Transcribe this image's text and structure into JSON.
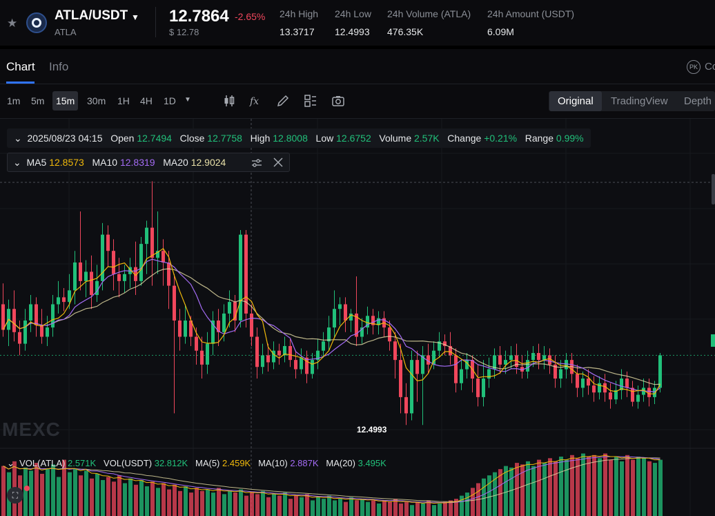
{
  "ticker": {
    "pair": "ATLA/USDT",
    "base": "ATLA",
    "price": "12.7864",
    "change_pct": "-2.65%",
    "price_usd": "$ 12.78",
    "stats": [
      {
        "label": "24h High",
        "value": "13.3717"
      },
      {
        "label": "24h Low",
        "value": "12.4993"
      },
      {
        "label": "24h Volume (ATLA)",
        "value": "476.35K"
      },
      {
        "label": "24h Amount (USDT)",
        "value": "6.09M"
      }
    ]
  },
  "tabs": {
    "chart": "Chart",
    "info": "Info",
    "pk_badge": "PK",
    "co_text": "Co"
  },
  "toolbar": {
    "timeframes": [
      "1m",
      "5m",
      "15m",
      "30m",
      "1H",
      "4H",
      "1D"
    ],
    "active_timeframe": "15m",
    "views": [
      "Original",
      "TradingView",
      "Depth"
    ],
    "active_view": "Original"
  },
  "ohlc": {
    "date": "2025/08/23 04:15",
    "open_label": "Open",
    "open": "12.7494",
    "close_label": "Close",
    "close": "12.7758",
    "high_label": "High",
    "high": "12.8008",
    "low_label": "Low",
    "low": "12.6752",
    "volume_label": "Volume",
    "volume": "2.57K",
    "change_label": "Change",
    "change": "+0.21%",
    "range_label": "Range",
    "range": "0.99%"
  },
  "ma": {
    "ma5_label": "MA5",
    "ma5": "12.8573",
    "ma10_label": "MA10",
    "ma10": "12.8319",
    "ma20_label": "MA20",
    "ma20": "12.9024"
  },
  "volume": {
    "vol_base_label": "VOL(ATLA)",
    "vol_base": "2.571K",
    "vol_quote_label": "VOL(USDT)",
    "vol_quote": "32.812K",
    "ma5_label": "MA(5)",
    "ma5": "2.459K",
    "ma10_label": "MA(10)",
    "ma10": "2.887K",
    "ma20_label": "MA(20)",
    "ma20": "3.495K"
  },
  "chart_low_label": "12.4993",
  "watermark": "MEXC",
  "colors": {
    "up": "#21c07a",
    "down": "#f0475c",
    "accent": "#2f74ff"
  },
  "chart_data": {
    "type": "candlestick",
    "candles": [
      [
        13.02,
        12.91,
        13.11,
        12.88
      ],
      [
        12.91,
        13.0,
        13.04,
        12.84
      ],
      [
        13.0,
        12.9,
        13.08,
        12.86
      ],
      [
        12.9,
        12.85,
        12.95,
        12.8
      ],
      [
        12.85,
        12.95,
        13.0,
        12.82
      ],
      [
        12.95,
        13.02,
        13.06,
        12.9
      ],
      [
        13.02,
        12.93,
        13.05,
        12.88
      ],
      [
        12.93,
        12.88,
        13.0,
        12.85
      ],
      [
        12.88,
        12.92,
        12.97,
        12.84
      ],
      [
        12.92,
        13.02,
        13.06,
        12.88
      ],
      [
        13.02,
        13.05,
        13.12,
        12.98
      ],
      [
        13.05,
        13.03,
        13.09,
        12.99
      ],
      [
        13.03,
        13.08,
        13.15,
        13.0
      ],
      [
        13.08,
        13.2,
        13.25,
        13.02
      ],
      [
        13.2,
        13.12,
        13.42,
        13.08
      ],
      [
        13.12,
        13.16,
        13.21,
        13.05
      ],
      [
        13.16,
        13.06,
        13.23,
        13.0
      ],
      [
        13.06,
        13.12,
        13.19,
        13.03
      ],
      [
        13.12,
        13.32,
        13.37,
        13.08
      ],
      [
        13.32,
        13.25,
        13.36,
        13.18
      ],
      [
        13.25,
        13.15,
        13.3,
        13.08
      ],
      [
        13.15,
        13.12,
        13.22,
        13.05
      ],
      [
        13.12,
        13.15,
        13.19,
        13.07
      ],
      [
        13.15,
        13.18,
        13.22,
        13.09
      ],
      [
        13.18,
        13.12,
        13.29,
        13.06
      ],
      [
        13.12,
        13.28,
        13.31,
        13.1
      ],
      [
        13.28,
        13.35,
        13.38,
        13.15
      ],
      [
        13.35,
        13.22,
        13.55,
        13.1
      ],
      [
        13.22,
        13.25,
        13.42,
        13.15
      ],
      [
        13.25,
        13.2,
        13.3,
        13.1
      ],
      [
        13.2,
        13.1,
        13.25,
        13.0
      ],
      [
        13.1,
        12.95,
        13.15,
        12.55
      ],
      [
        12.95,
        12.88,
        13.0,
        12.82
      ],
      [
        12.88,
        12.95,
        13.02,
        12.85
      ],
      [
        12.95,
        12.88,
        12.97,
        12.84
      ],
      [
        12.88,
        12.82,
        12.92,
        12.76
      ],
      [
        12.82,
        12.76,
        12.88,
        12.7
      ],
      [
        12.76,
        12.85,
        12.9,
        12.72
      ],
      [
        12.85,
        12.95,
        12.99,
        12.8
      ],
      [
        12.95,
        12.9,
        13.0,
        12.84
      ],
      [
        12.9,
        12.98,
        13.02,
        12.86
      ],
      [
        12.98,
        13.03,
        13.08,
        12.92
      ],
      [
        13.03,
        12.95,
        13.06,
        12.9
      ],
      [
        12.95,
        13.32,
        13.34,
        12.92
      ],
      [
        13.32,
        12.98,
        13.34,
        12.92
      ],
      [
        12.98,
        12.88,
        13.02,
        12.84
      ],
      [
        12.88,
        12.75,
        12.92,
        12.7
      ],
      [
        12.75,
        12.8,
        12.85,
        12.72
      ],
      [
        12.8,
        12.77,
        12.85,
        12.73
      ],
      [
        12.77,
        12.82,
        12.86,
        12.74
      ],
      [
        12.82,
        12.8,
        12.85,
        12.76
      ],
      [
        12.8,
        12.84,
        12.88,
        12.77
      ],
      [
        12.84,
        12.78,
        12.87,
        12.75
      ],
      [
        12.78,
        12.74,
        12.82,
        12.7
      ],
      [
        12.74,
        12.79,
        12.83,
        12.72
      ],
      [
        12.79,
        12.72,
        12.82,
        12.68
      ],
      [
        12.72,
        12.78,
        12.81,
        12.7
      ],
      [
        12.78,
        12.82,
        12.87,
        12.74
      ],
      [
        12.82,
        12.86,
        12.9,
        12.79
      ],
      [
        12.86,
        12.92,
        12.97,
        12.82
      ],
      [
        12.92,
        13.0,
        13.08,
        12.88
      ],
      [
        13.0,
        13.02,
        13.05,
        12.93
      ],
      [
        13.02,
        12.95,
        13.05,
        12.9
      ],
      [
        12.95,
        12.98,
        13.0,
        12.9
      ],
      [
        12.98,
        12.88,
        13.14,
        12.84
      ],
      [
        12.88,
        12.92,
        12.96,
        12.85
      ],
      [
        12.92,
        12.97,
        13.01,
        12.89
      ],
      [
        12.97,
        12.93,
        13.0,
        12.89
      ],
      [
        12.93,
        12.96,
        12.99,
        12.89
      ],
      [
        12.96,
        12.92,
        12.99,
        12.88
      ],
      [
        12.92,
        12.86,
        12.95,
        12.82
      ],
      [
        12.86,
        12.78,
        12.9,
        12.7
      ],
      [
        12.78,
        12.62,
        12.85,
        12.55
      ],
      [
        12.62,
        12.55,
        12.68,
        12.5
      ],
      [
        12.55,
        12.78,
        12.82,
        12.52
      ],
      [
        12.78,
        12.72,
        12.82,
        12.6
      ],
      [
        12.72,
        12.8,
        12.84,
        12.5
      ],
      [
        12.8,
        12.76,
        12.85,
        12.72
      ],
      [
        12.76,
        12.82,
        12.86,
        12.74
      ],
      [
        12.82,
        12.86,
        12.9,
        12.79
      ],
      [
        12.86,
        12.84,
        12.89,
        12.8
      ],
      [
        12.84,
        12.8,
        12.9,
        12.76
      ],
      [
        12.8,
        12.68,
        12.83,
        12.64
      ],
      [
        12.68,
        12.74,
        12.78,
        12.65
      ],
      [
        12.74,
        12.78,
        12.81,
        12.7
      ],
      [
        12.78,
        12.7,
        12.8,
        12.64
      ],
      [
        12.7,
        12.62,
        12.76,
        12.58
      ],
      [
        12.62,
        12.7,
        12.78,
        12.58
      ],
      [
        12.7,
        12.74,
        12.79,
        12.66
      ],
      [
        12.74,
        12.8,
        12.83,
        12.7
      ],
      [
        12.8,
        12.76,
        12.84,
        12.72
      ],
      [
        12.76,
        12.78,
        12.82,
        12.72
      ],
      [
        12.78,
        12.8,
        12.84,
        12.74
      ],
      [
        12.8,
        12.75,
        12.85,
        12.72
      ],
      [
        12.75,
        12.73,
        12.8,
        12.7
      ],
      [
        12.73,
        12.78,
        12.82,
        12.7
      ],
      [
        12.78,
        12.81,
        12.84,
        12.75
      ],
      [
        12.81,
        12.78,
        12.85,
        12.74
      ],
      [
        12.78,
        12.8,
        12.84,
        12.74
      ],
      [
        12.8,
        12.76,
        12.83,
        12.72
      ],
      [
        12.76,
        12.7,
        12.8,
        12.66
      ],
      [
        12.7,
        12.74,
        12.78,
        12.66
      ],
      [
        12.74,
        12.78,
        12.81,
        12.7
      ],
      [
        12.78,
        12.72,
        12.81,
        12.68
      ],
      [
        12.72,
        12.66,
        12.76,
        12.62
      ],
      [
        12.66,
        12.7,
        12.73,
        12.62
      ],
      [
        12.7,
        12.67,
        12.74,
        12.63
      ],
      [
        12.67,
        12.64,
        12.71,
        12.6
      ],
      [
        12.64,
        12.68,
        12.71,
        12.61
      ],
      [
        12.68,
        12.64,
        12.72,
        12.6
      ],
      [
        12.64,
        12.61,
        12.68,
        12.57
      ],
      [
        12.61,
        12.65,
        12.69,
        12.59
      ],
      [
        12.65,
        12.7,
        12.74,
        12.61
      ],
      [
        12.7,
        12.66,
        12.73,
        12.62
      ],
      [
        12.66,
        12.6,
        12.69,
        12.58
      ],
      [
        12.6,
        12.63,
        12.67,
        12.57
      ],
      [
        12.63,
        12.66,
        12.7,
        12.6
      ],
      [
        12.66,
        12.62,
        12.7,
        12.58
      ],
      [
        12.62,
        12.66,
        12.69,
        12.59
      ],
      [
        12.66,
        12.8,
        12.81,
        12.64
      ]
    ],
    "volumes": [
      3.2,
      2.8,
      3.5,
      2.6,
      3.1,
      2.9,
      3.4,
      2.7,
      3.0,
      3.3,
      2.5,
      3.6,
      2.8,
      3.0,
      2.6,
      2.9,
      2.4,
      2.7,
      2.3,
      2.5,
      2.2,
      2.6,
      2.1,
      2.4,
      2.0,
      2.3,
      1.9,
      2.2,
      1.8,
      2.1,
      1.7,
      2.0,
      1.6,
      1.9,
      1.5,
      1.8,
      1.6,
      1.7,
      1.5,
      1.8,
      1.4,
      1.6,
      1.5,
      1.7,
      1.3,
      1.5,
      1.4,
      1.6,
      1.2,
      1.4,
      1.3,
      1.5,
      1.1,
      1.3,
      1.2,
      1.4,
      1.0,
      1.2,
      1.1,
      1.3,
      1.0,
      1.1,
      0.9,
      1.2,
      1.0,
      1.1,
      0.9,
      1.0,
      0.8,
      1.0,
      0.9,
      1.1,
      0.8,
      0.9,
      0.7,
      0.9,
      0.8,
      1.0,
      0.7,
      0.8,
      0.9,
      1.0,
      1.1,
      1.3,
      1.5,
      1.8,
      2.1,
      2.4,
      2.6,
      2.8,
      3.0,
      3.2,
      3.1,
      3.4,
      3.3,
      3.5,
      3.2,
      3.6,
      3.4,
      3.7,
      3.5,
      3.8,
      3.6,
      3.9,
      3.7,
      4.0,
      3.8,
      3.9,
      3.7,
      4.0,
      3.6,
      3.8,
      3.5,
      3.9,
      3.6,
      3.8,
      3.7,
      3.5,
      3.4,
      3.6
    ]
  }
}
